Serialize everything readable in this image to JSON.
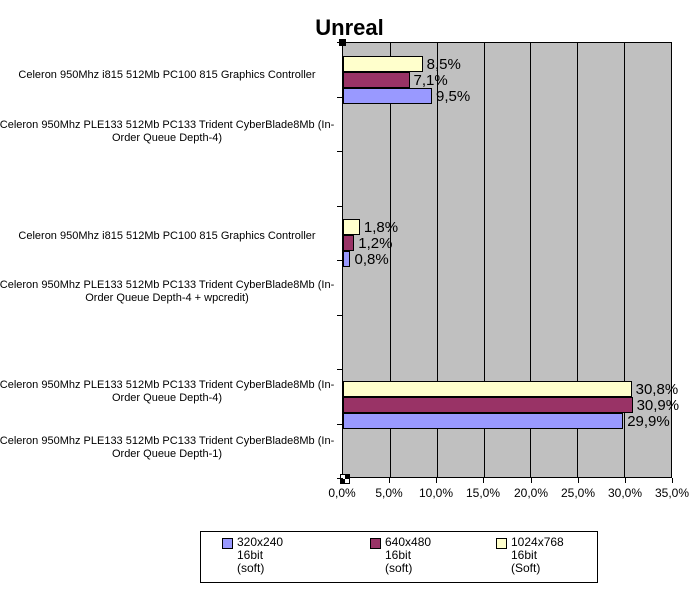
{
  "title": "Unreal",
  "chart_data": {
    "type": "bar",
    "orientation": "horizontal",
    "title": "Unreal",
    "plot_bg_color": "#C0C0C0",
    "grid": true,
    "grid_color": "#000000",
    "bar_border_color": "#000000",
    "legend_position": "bottom",
    "x_axis": {
      "min": 0,
      "max": 35,
      "tick_step": 5,
      "tick_labels": [
        "0,0%",
        "5,0%",
        "10,0%",
        "15,0%",
        "20,0%",
        "25,0%",
        "30,0%",
        "35,0%"
      ]
    },
    "categories": [
      "Celeron 950Mhz i815 512Mb PC100 815 Graphics Controller",
      "Celeron 950Mhz PLE133 512Mb PC133 Trident CyberBlade8Mb (In-Order Queue Depth-4)",
      "Celeron 950Mhz i815 512Mb PC100 815 Graphics Controller",
      "Celeron 950Mhz PLE133 512Mb PC133 Trident CyberBlade8Mb (In-Order Queue Depth-4 + wpcredit)",
      "Celeron 950Mhz PLE133 512Mb PC133 Trident CyberBlade8Mb (In-Order Queue Depth-4)",
      "Celeron 950Mhz PLE133 512Mb PC133 Trident CyberBlade8Mb (In-Order Queue Depth-1)"
    ],
    "category_label_lines": [
      [
        "Celeron 950Mhz i815 512Mb PC100 815 Graphics Controller"
      ],
      [
        "Celeron 950Mhz PLE133 512Mb PC133 Trident CyberBlade8Mb (In-",
        "Order Queue Depth-4)"
      ],
      [
        "Celeron 950Mhz i815 512Mb PC100 815 Graphics Controller"
      ],
      [
        "Celeron 950Mhz PLE133 512Mb PC133 Trident CyberBlade8Mb (In-",
        "Order Queue Depth-4 + wpcredit)"
      ],
      [
        "Celeron 950Mhz PLE133 512Mb PC133 Trident CyberBlade8Mb (In-",
        "Order Queue Depth-4)"
      ],
      [
        "Celeron 950Mhz PLE133 512Mb PC133 Trident CyberBlade8Mb (In-",
        "Order Queue Depth-1)"
      ]
    ],
    "series": [
      {
        "name": "320x240 16bit (soft)",
        "color": "#9999FF",
        "values": [
          9.5,
          null,
          0.8,
          null,
          29.9,
          null
        ],
        "value_labels": [
          "9,5%",
          null,
          "0,8%",
          null,
          "29,9%",
          null
        ]
      },
      {
        "name": "640x480 16bit (soft)",
        "color": "#993366",
        "values": [
          7.1,
          null,
          1.2,
          null,
          30.9,
          null
        ],
        "value_labels": [
          "7,1%",
          null,
          "1,2%",
          null,
          "30,9%",
          null
        ]
      },
      {
        "name": "1024x768 16bit (Soft)",
        "color": "#FFFFCC",
        "values": [
          8.5,
          null,
          1.8,
          null,
          30.8,
          null
        ],
        "value_labels": [
          "8,5%",
          null,
          "1,8%",
          null,
          "30,8%",
          null
        ]
      }
    ]
  },
  "legend": {
    "items": [
      {
        "lines": [
          "320x240",
          "16bit",
          "(soft)"
        ],
        "color": "#9999FF"
      },
      {
        "lines": [
          "640x480",
          "16bit",
          "(soft)"
        ],
        "color": "#993366"
      },
      {
        "lines": [
          "1024x768",
          "16bit",
          "(Soft)"
        ],
        "color": "#FFFFCC"
      }
    ]
  }
}
